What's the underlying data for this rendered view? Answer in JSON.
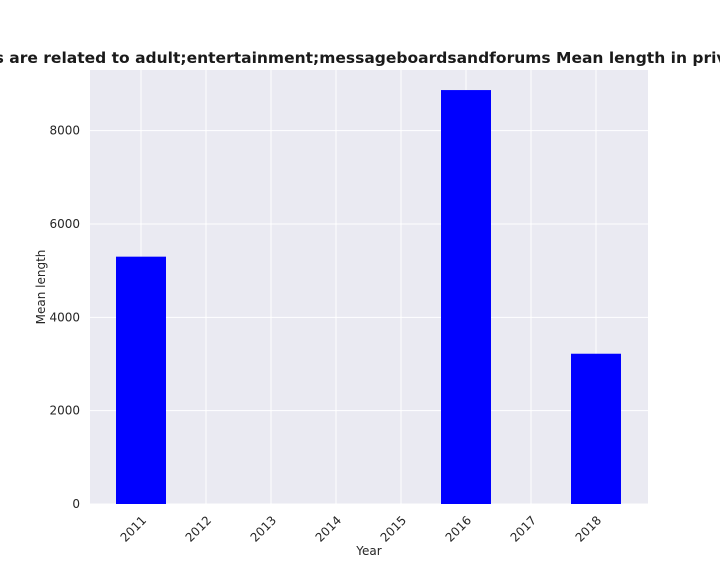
{
  "chart_data": {
    "type": "bar",
    "title": "Categories are related to adult;entertainment;messageboardsandforums Mean length in privacy policies",
    "xlabel": "Year",
    "ylabel": "Mean length",
    "categories": [
      "2011",
      "2012",
      "2013",
      "2014",
      "2015",
      "2016",
      "2017",
      "2018"
    ],
    "values": [
      5300,
      0,
      0,
      0,
      0,
      8870,
      0,
      3220
    ],
    "ylim": [
      0,
      9300
    ],
    "yticks": [
      0,
      2000,
      4000,
      6000,
      8000
    ],
    "grid": true,
    "legend": "none",
    "colors": {
      "bar": "#0000ff",
      "plot_background": "#eaeaf2",
      "grid": "#ffffff"
    }
  }
}
